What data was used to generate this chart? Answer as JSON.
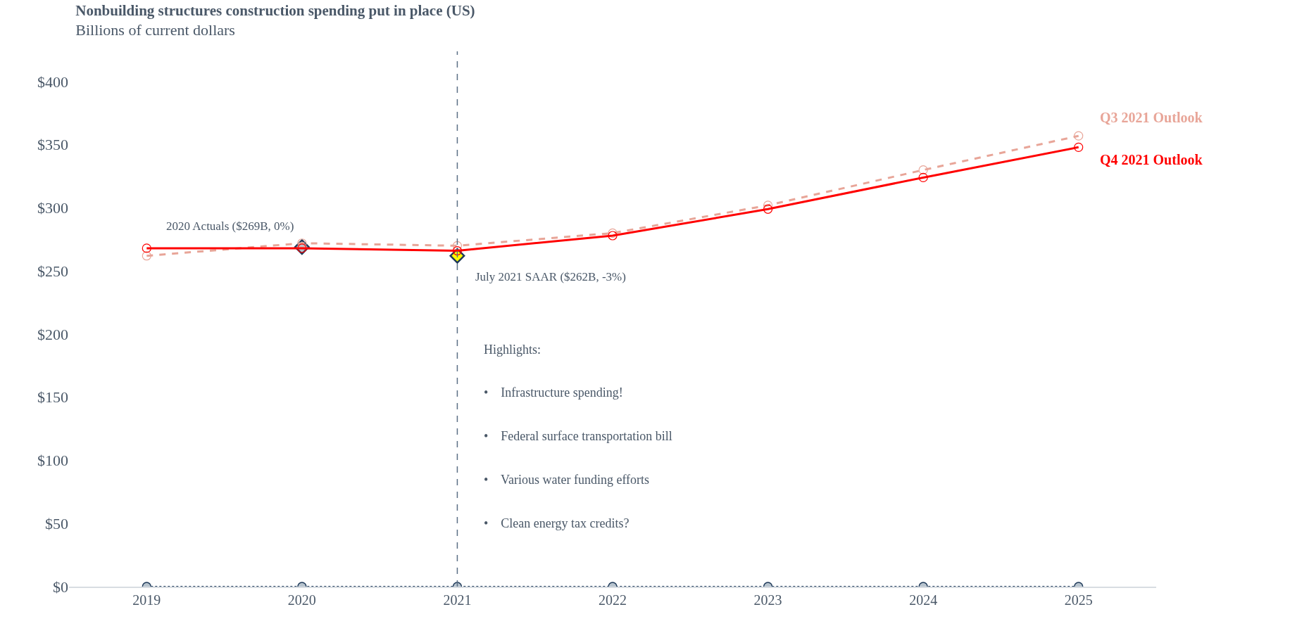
{
  "chart_data": {
    "type": "line",
    "title": "Nonbuilding structures construction spending put in place (US)",
    "subtitle": "Billions of current dollars",
    "x": [
      2019,
      2020,
      2021,
      2022,
      2023,
      2024,
      2025
    ],
    "xlim": [
      2018.5,
      2025.5
    ],
    "xticks": [
      2019,
      2020,
      2021,
      2022,
      2023,
      2024,
      2025
    ],
    "ylim": [
      0,
      400
    ],
    "yticks": [
      {
        "value": 0,
        "label": "$0"
      },
      {
        "value": 50,
        "label": "$50"
      },
      {
        "value": 100,
        "label": "$100"
      },
      {
        "value": 150,
        "label": "$150"
      },
      {
        "value": 200,
        "label": "$200"
      },
      {
        "value": 250,
        "label": "$250"
      },
      {
        "value": 300,
        "label": "$300"
      },
      {
        "value": 350,
        "label": "$350"
      },
      {
        "value": 400,
        "label": "$400"
      }
    ],
    "grid": false,
    "legend": false,
    "series": [
      {
        "color": "#1f3a5a",
        "colors": [
          "#b8c4ce",
          "#b8c4ce",
          "#b8c4ce",
          "#b8c4ce",
          "#b8c4ce",
          "#b8c4ce",
          "#b8c4ce"
        ],
        "line_style": "dotted",
        "marker": "circle",
        "values": [
          0,
          0,
          0,
          0,
          0,
          0,
          0
        ]
      },
      {
        "name": "Q3 2021 Outlook",
        "color": "#e8a598",
        "line_style": "dashed",
        "marker": "circle",
        "values": [
          262,
          272,
          270,
          280,
          302,
          330,
          357
        ]
      },
      {
        "name": "Q4 2021 Outlook",
        "color": "#ff0000",
        "line_style": "solid",
        "marker": "circle",
        "values": [
          268,
          268,
          266,
          278,
          299,
          324,
          348
        ]
      },
      {
        "type": "scatter",
        "color": "#1f3a5a",
        "colors": [
          "#b8c4ce"
        ],
        "marker": "diamond",
        "x": [
          2020
        ],
        "values": [
          269
        ]
      },
      {
        "type": "scatter",
        "color": "#1f3a5a",
        "colors": [
          "#ffff00"
        ],
        "marker": "diamond",
        "x": [
          2021
        ],
        "values": [
          262
        ]
      }
    ],
    "ref_lines": [
      {
        "axis": "x",
        "value": 2021,
        "color": "#5a6f85",
        "line_style": "dashed"
      }
    ],
    "annotations": [
      {
        "text": "2020 Actuals ($269B, 0%)",
        "x": 2020,
        "y": 269
      },
      {
        "text": "July 2021 SAAR ($262B, -3%)",
        "x": 2021,
        "y": 262
      },
      "Highlights:",
      "•    Infrastructure spending!",
      "•    Federal surface transportation bill",
      "•    Various water funding efforts",
      "•    Clean energy tax credits?"
    ]
  }
}
